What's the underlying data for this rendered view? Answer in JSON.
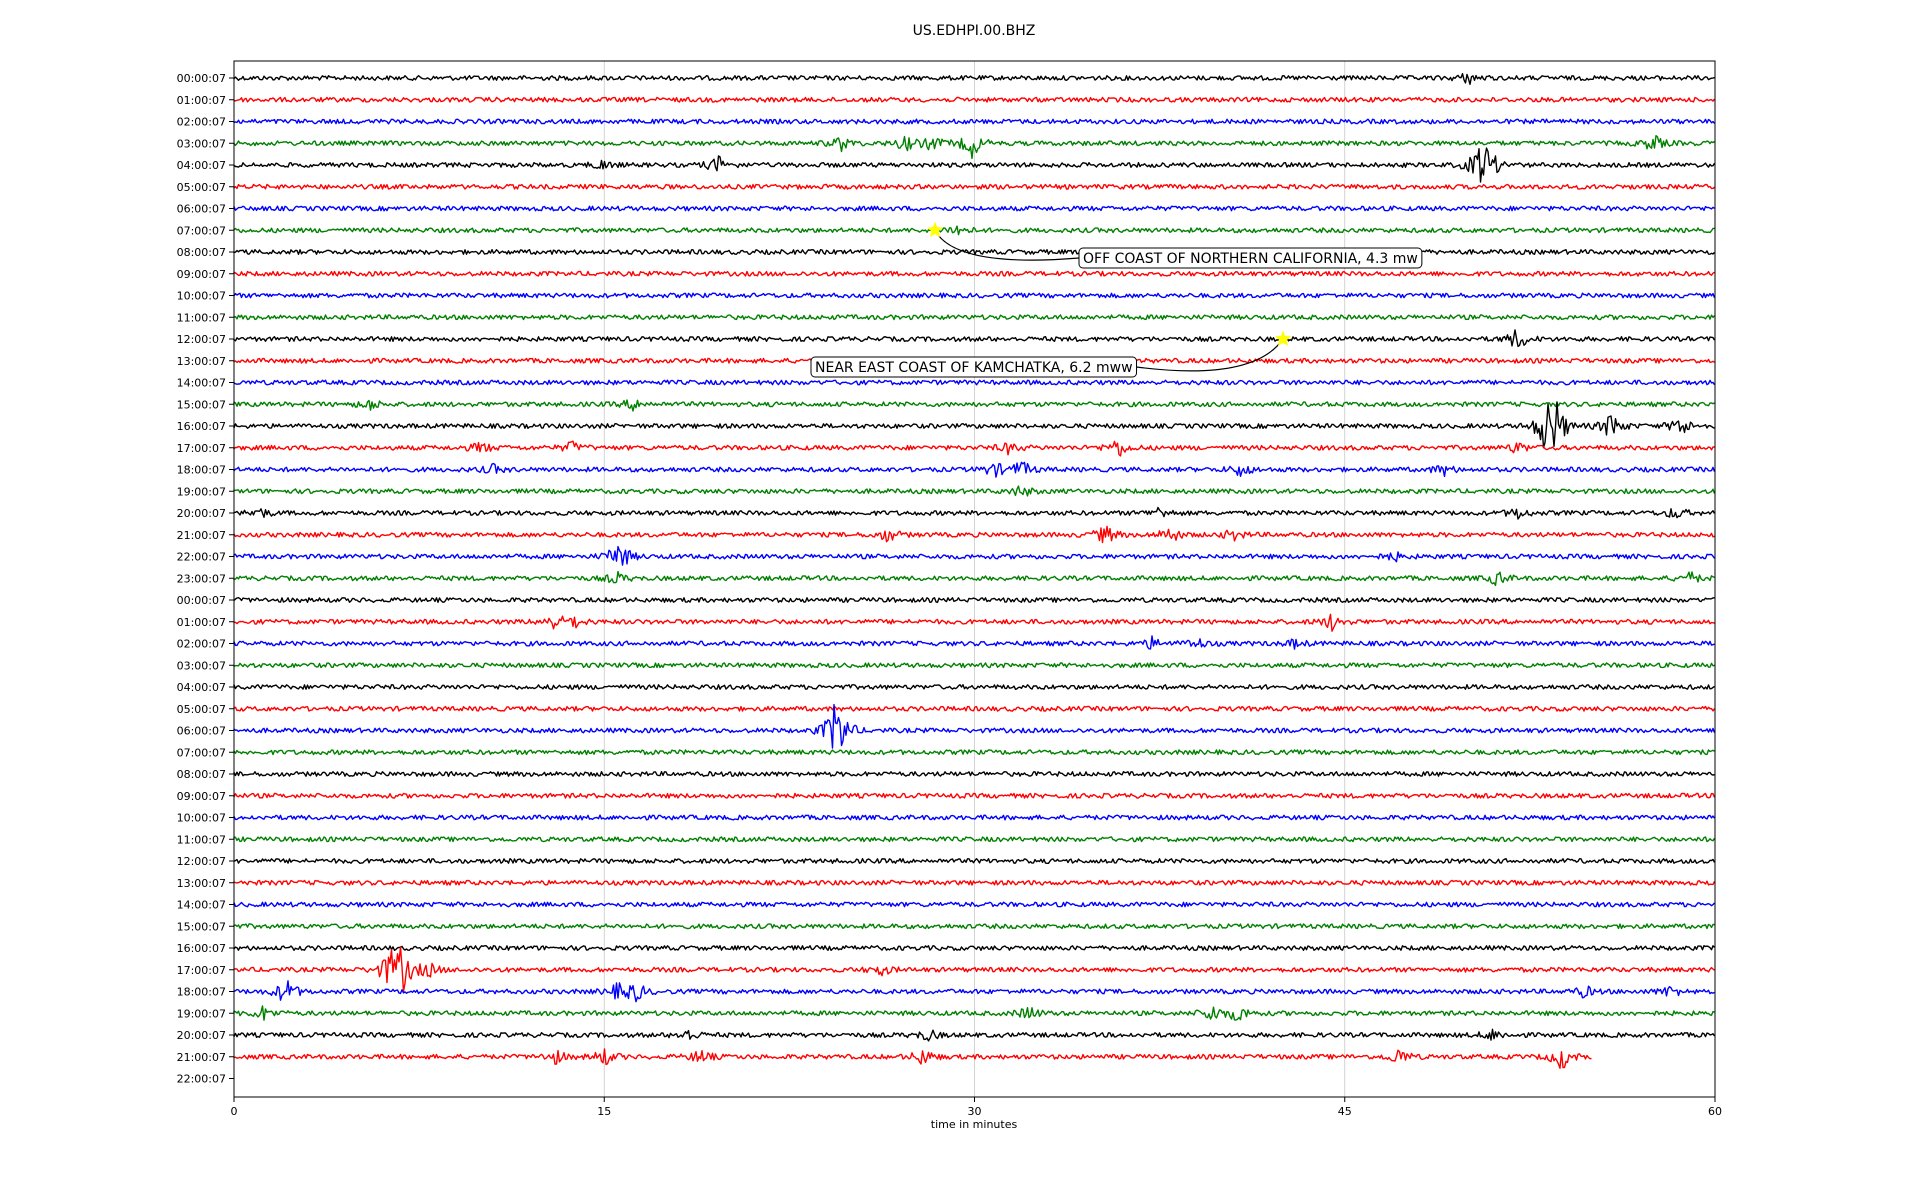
{
  "chart_data": {
    "type": "line",
    "title": "US.EDHPI.00.BHZ",
    "xlabel": "time in minutes",
    "ylabel": "",
    "xlim": [
      0,
      60
    ],
    "xticks": [
      "0",
      "15",
      "30",
      "45",
      "60"
    ],
    "xtick_values": [
      0,
      15,
      30,
      45,
      60
    ],
    "grid": "vertical lines at each x tick",
    "row_colors": [
      "#000000",
      "#ff0000",
      "#0000ff",
      "#008000"
    ],
    "row_labels": [
      "00:00:07",
      "01:00:07",
      "02:00:07",
      "03:00:07",
      "04:00:07",
      "05:00:07",
      "06:00:07",
      "07:00:07",
      "08:00:07",
      "09:00:07",
      "10:00:07",
      "11:00:07",
      "12:00:07",
      "13:00:07",
      "14:00:07",
      "15:00:07",
      "16:00:07",
      "17:00:07",
      "18:00:07",
      "19:00:07",
      "20:00:07",
      "21:00:07",
      "22:00:07",
      "23:00:07",
      "00:00:07",
      "01:00:07",
      "02:00:07",
      "03:00:07",
      "04:00:07",
      "05:00:07",
      "06:00:07",
      "07:00:07",
      "08:00:07",
      "09:00:07",
      "10:00:07",
      "11:00:07",
      "12:00:07",
      "13:00:07",
      "14:00:07",
      "15:00:07",
      "16:00:07",
      "17:00:07",
      "18:00:07",
      "19:00:07",
      "20:00:07",
      "21:00:07",
      "22:00:07"
    ],
    "last_trace_end_minute": 55,
    "bursts": [
      {
        "row": 0,
        "minute": 50,
        "amp": 0.4
      },
      {
        "row": 3,
        "minute": 24.6,
        "amp": 0.5
      },
      {
        "row": 3,
        "minute": 27.2,
        "amp": 0.5
      },
      {
        "row": 3,
        "minute": 28.3,
        "amp": 0.5
      },
      {
        "row": 3,
        "minute": 29.9,
        "amp": 1.0
      },
      {
        "row": 3,
        "minute": 57.5,
        "amp": 0.6
      },
      {
        "row": 4,
        "minute": 14.9,
        "amp": 0.3
      },
      {
        "row": 4,
        "minute": 19.6,
        "amp": 0.6
      },
      {
        "row": 4,
        "minute": 50.4,
        "amp": 1.0
      },
      {
        "row": 4,
        "minute": 50.8,
        "amp": 1.2
      },
      {
        "row": 7,
        "minute": 29.3,
        "amp": 0.4
      },
      {
        "row": 12,
        "minute": 52.0,
        "amp": 0.8
      },
      {
        "row": 15,
        "minute": 5.5,
        "amp": 0.4
      },
      {
        "row": 15,
        "minute": 16.2,
        "amp": 0.4
      },
      {
        "row": 16,
        "minute": 53.2,
        "amp": 2.2
      },
      {
        "row": 16,
        "minute": 53.6,
        "amp": 1.2
      },
      {
        "row": 16,
        "minute": 55.8,
        "amp": 1.0
      },
      {
        "row": 16,
        "minute": 58.6,
        "amp": 0.7
      },
      {
        "row": 17,
        "minute": 10.0,
        "amp": 0.4
      },
      {
        "row": 17,
        "minute": 13.7,
        "amp": 0.4
      },
      {
        "row": 17,
        "minute": 31.4,
        "amp": 0.4
      },
      {
        "row": 17,
        "minute": 35.8,
        "amp": 0.7
      },
      {
        "row": 17,
        "minute": 52.0,
        "amp": 0.4
      },
      {
        "row": 18,
        "minute": 10.5,
        "amp": 0.3
      },
      {
        "row": 18,
        "minute": 30.8,
        "amp": 0.5
      },
      {
        "row": 18,
        "minute": 31.9,
        "amp": 0.6
      },
      {
        "row": 18,
        "minute": 40.8,
        "amp": 0.5
      },
      {
        "row": 18,
        "minute": 49.0,
        "amp": 0.4
      },
      {
        "row": 19,
        "minute": 31.9,
        "amp": 0.4
      },
      {
        "row": 20,
        "minute": 1.0,
        "amp": 0.4
      },
      {
        "row": 20,
        "minute": 37.5,
        "amp": 0.4
      },
      {
        "row": 20,
        "minute": 52.0,
        "amp": 0.4
      },
      {
        "row": 20,
        "minute": 58.4,
        "amp": 0.4
      },
      {
        "row": 21,
        "minute": 26.5,
        "amp": 0.5
      },
      {
        "row": 21,
        "minute": 35.3,
        "amp": 0.7
      },
      {
        "row": 21,
        "minute": 37.9,
        "amp": 0.6
      },
      {
        "row": 21,
        "minute": 40.5,
        "amp": 0.4
      },
      {
        "row": 22,
        "minute": 15.6,
        "amp": 1.2
      },
      {
        "row": 22,
        "minute": 47.0,
        "amp": 0.3
      },
      {
        "row": 23,
        "minute": 15.5,
        "amp": 0.4
      },
      {
        "row": 23,
        "minute": 51.2,
        "amp": 0.5
      },
      {
        "row": 23,
        "minute": 59.0,
        "amp": 0.4
      },
      {
        "row": 25,
        "minute": 12.9,
        "amp": 0.5
      },
      {
        "row": 25,
        "minute": 13.7,
        "amp": 0.5
      },
      {
        "row": 25,
        "minute": 44.5,
        "amp": 0.6
      },
      {
        "row": 26,
        "minute": 37.2,
        "amp": 0.4
      },
      {
        "row": 26,
        "minute": 39.0,
        "amp": 0.4
      },
      {
        "row": 26,
        "minute": 43.0,
        "amp": 0.3
      },
      {
        "row": 30,
        "minute": 24.3,
        "amp": 1.0
      },
      {
        "row": 30,
        "minute": 24.5,
        "amp": 1.6
      },
      {
        "row": 41,
        "minute": 6.3,
        "amp": 1.2
      },
      {
        "row": 41,
        "minute": 6.8,
        "amp": 1.6
      },
      {
        "row": 41,
        "minute": 7.9,
        "amp": 0.5
      },
      {
        "row": 41,
        "minute": 26.2,
        "amp": 0.4
      },
      {
        "row": 42,
        "minute": 2.1,
        "amp": 1.0
      },
      {
        "row": 42,
        "minute": 15.6,
        "amp": 0.6
      },
      {
        "row": 42,
        "minute": 16.3,
        "amp": 0.6
      },
      {
        "row": 42,
        "minute": 54.7,
        "amp": 0.4
      },
      {
        "row": 42,
        "minute": 58.2,
        "amp": 0.4
      },
      {
        "row": 43,
        "minute": 1.2,
        "amp": 0.5
      },
      {
        "row": 43,
        "minute": 32.2,
        "amp": 0.5
      },
      {
        "row": 43,
        "minute": 39.6,
        "amp": 0.6
      },
      {
        "row": 43,
        "minute": 40.7,
        "amp": 0.6
      },
      {
        "row": 44,
        "minute": 18.4,
        "amp": 0.4
      },
      {
        "row": 44,
        "minute": 28.1,
        "amp": 0.4
      },
      {
        "row": 44,
        "minute": 51.0,
        "amp": 0.4
      },
      {
        "row": 45,
        "minute": 13.0,
        "amp": 0.5
      },
      {
        "row": 45,
        "minute": 15.0,
        "amp": 0.6
      },
      {
        "row": 45,
        "minute": 18.9,
        "amp": 0.5
      },
      {
        "row": 45,
        "minute": 27.9,
        "amp": 0.6
      },
      {
        "row": 45,
        "minute": 47.2,
        "amp": 0.6
      },
      {
        "row": 45,
        "minute": 53.8,
        "amp": 0.9
      }
    ],
    "events": [
      {
        "label": "OFF COAST OF NORTHERN CALIFORNIA, 4.3 mw",
        "row": 7,
        "minute": 28.4,
        "marker": "star",
        "marker_color": "#ffff00"
      },
      {
        "label": "NEAR EAST COAST OF KAMCHATKA, 6.2 mww",
        "row": 12,
        "minute": 42.5,
        "marker": "star",
        "marker_color": "#ffff00"
      }
    ]
  }
}
